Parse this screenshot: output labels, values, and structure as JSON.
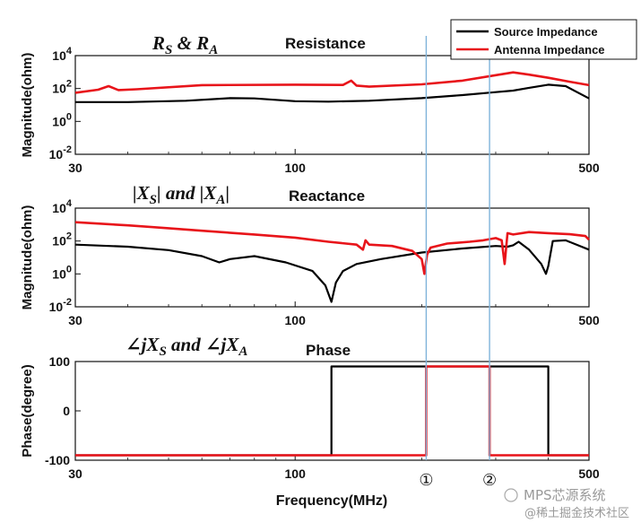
{
  "xlabel": "Frequency(MHz)",
  "x_ticks": [
    "30",
    "100",
    "500"
  ],
  "legend": {
    "source": "Source Impedance",
    "antenna": "Antenna Impedance"
  },
  "colors": {
    "source": "#000000",
    "antenna": "#e8141a",
    "marker_line": "#7fb3da"
  },
  "markers": [
    {
      "label": "①",
      "x": 205
    },
    {
      "label": "②",
      "x": 290
    }
  ],
  "watermark": {
    "line1": "MPS芯源系统",
    "line2": "@稀土掘金技术社区"
  },
  "chart_data": [
    {
      "type": "line",
      "title": "Resistance",
      "math_title": "R_S & R_A",
      "ylabel": "Magnitude(ohm)",
      "xscale": "log",
      "yscale": "log",
      "xlim": [
        30,
        500
      ],
      "ylim": [
        0.01,
        10000
      ],
      "y_ticks": [
        "10^4",
        "10^2",
        "10^0",
        "10^-2"
      ],
      "series": [
        {
          "name": "Source Impedance",
          "x": [
            30,
            40,
            55,
            70,
            80,
            100,
            120,
            150,
            200,
            250,
            300,
            330,
            360,
            400,
            440,
            500
          ],
          "y": [
            15,
            15,
            18,
            26,
            25,
            17,
            16,
            18,
            26,
            40,
            60,
            75,
            110,
            170,
            140,
            25
          ]
        },
        {
          "name": "Antenna Impedance",
          "x": [
            30,
            34,
            36,
            38,
            42,
            60,
            100,
            130,
            136,
            140,
            150,
            200,
            250,
            300,
            330,
            360,
            400,
            450,
            500
          ],
          "y": [
            55,
            85,
            140,
            80,
            90,
            160,
            170,
            165,
            300,
            150,
            130,
            180,
            300,
            650,
            950,
            700,
            450,
            260,
            160
          ]
        }
      ]
    },
    {
      "type": "line",
      "title": "Reactance",
      "math_title": "|X_S| and |X_A|",
      "ylabel": "Magnitude(ohm)",
      "xscale": "log",
      "yscale": "log",
      "xlim": [
        30,
        500
      ],
      "ylim": [
        0.01,
        10000
      ],
      "y_ticks": [
        "10^4",
        "10^2",
        "10^0",
        "10^-2"
      ],
      "series": [
        {
          "name": "Source Impedance",
          "x": [
            30,
            40,
            50,
            60,
            66,
            70,
            80,
            95,
            110,
            118,
            122,
            125,
            130,
            140,
            160,
            200,
            250,
            300,
            320,
            330,
            340,
            360,
            385,
            395,
            400,
            410,
            440,
            500
          ],
          "y": [
            60,
            45,
            28,
            12,
            5,
            8,
            12,
            5,
            1.5,
            0.2,
            0.02,
            0.3,
            1.5,
            4,
            8,
            20,
            35,
            50,
            45,
            55,
            90,
            30,
            4,
            1,
            3,
            100,
            110,
            30
          ]
        },
        {
          "name": "Antenna Impedance",
          "x": [
            30,
            40,
            50,
            60,
            80,
            100,
            120,
            140,
            145,
            147,
            150,
            170,
            190,
            200,
            203,
            206,
            210,
            230,
            260,
            280,
            300,
            310,
            315,
            320,
            330,
            360,
            400,
            450,
            490,
            500
          ],
          "y": [
            1400,
            900,
            600,
            420,
            250,
            160,
            90,
            60,
            30,
            110,
            60,
            50,
            25,
            8,
            1,
            15,
            40,
            70,
            90,
            110,
            150,
            110,
            4,
            300,
            250,
            350,
            300,
            260,
            200,
            120
          ]
        }
      ]
    },
    {
      "type": "line",
      "title": "Phase",
      "math_title": "∠jX_S and ∠jX_A",
      "ylabel": "Phase(degree)",
      "xscale": "log",
      "xlim": [
        30,
        500
      ],
      "ylim": [
        -100,
        100
      ],
      "y_ticks": [
        "100",
        "0",
        "-100"
      ],
      "series": [
        {
          "name": "Source Impedance",
          "x": [
            30,
            122,
            122,
            400,
            400,
            500
          ],
          "y": [
            -90,
            -90,
            90,
            90,
            -90,
            -90
          ]
        },
        {
          "name": "Antenna Impedance",
          "x": [
            30,
            205,
            205,
            290,
            290,
            500
          ],
          "y": [
            -90,
            -90,
            90,
            90,
            -90,
            -90
          ]
        }
      ]
    }
  ]
}
